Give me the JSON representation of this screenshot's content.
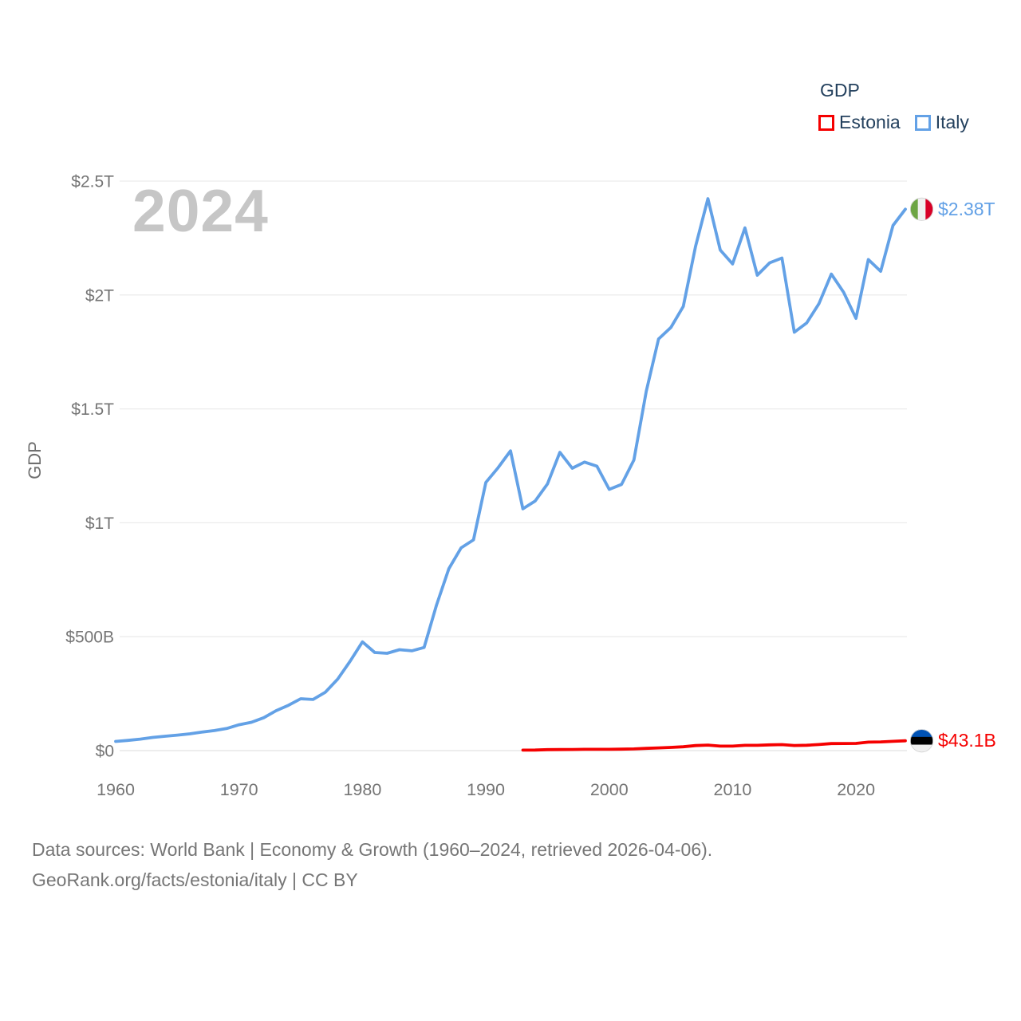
{
  "legend": {
    "title": "GDP",
    "items": [
      {
        "id": "estonia",
        "label": "Estonia",
        "color": "#f50000"
      },
      {
        "id": "italy",
        "label": "Italy",
        "color": "#63a1e6"
      }
    ]
  },
  "chart_data": {
    "type": "line",
    "title": "GDP",
    "ylabel": "GDP",
    "watermark": "2024",
    "unit": "billion USD",
    "xlim": [
      1960,
      2024
    ],
    "ylim_billions": [
      0,
      2500
    ],
    "grid": "horizontal",
    "legend_position": "top-right",
    "x_ticks": [
      1960,
      1970,
      1980,
      1990,
      2000,
      2010,
      2020
    ],
    "y_ticks": [
      {
        "label": "$0",
        "value": 0
      },
      {
        "label": "$500B",
        "value": 500
      },
      {
        "label": "$1T",
        "value": 1000
      },
      {
        "label": "$1.5T",
        "value": 1500
      },
      {
        "label": "$2T",
        "value": 2000
      },
      {
        "label": "$2.5T",
        "value": 2500
      }
    ],
    "series": [
      {
        "name": "Italy",
        "color": "#63a1e6",
        "flag": "italy",
        "end_label": "$2.38T",
        "years": [
          1960,
          1961,
          1962,
          1963,
          1964,
          1965,
          1966,
          1967,
          1968,
          1969,
          1970,
          1971,
          1972,
          1973,
          1974,
          1975,
          1976,
          1977,
          1978,
          1979,
          1980,
          1981,
          1982,
          1983,
          1984,
          1985,
          1986,
          1987,
          1988,
          1989,
          1990,
          1991,
          1992,
          1993,
          1994,
          1995,
          1996,
          1997,
          1998,
          1999,
          2000,
          2001,
          2002,
          2003,
          2004,
          2005,
          2006,
          2007,
          2008,
          2009,
          2010,
          2011,
          2012,
          2013,
          2014,
          2015,
          2016,
          2017,
          2018,
          2019,
          2020,
          2021,
          2022,
          2023,
          2024
        ],
        "values_billion_usd": [
          40.4,
          44.8,
          50.4,
          57.6,
          63.2,
          67.8,
          73.6,
          81.1,
          87.9,
          97.1,
          113.4,
          124.2,
          144.4,
          174.9,
          198.9,
          227.5,
          224.6,
          256.5,
          314.2,
          392.3,
          477.3,
          430.7,
          427.3,
          443.0,
          437.9,
          452.7,
          638.4,
          798.4,
          889.9,
          925.0,
          1177.3,
          1242.1,
          1315.8,
          1061.4,
          1095.7,
          1170.8,
          1309.1,
          1239.5,
          1266.3,
          1248.6,
          1146.7,
          1168.3,
          1275.5,
          1577.2,
          1806.6,
          1857.5,
          1949.6,
          2213.1,
          2422.7,
          2197.1,
          2136.1,
          2294.6,
          2086.9,
          2141.2,
          2162.0,
          1836.6,
          1877.1,
          1961.8,
          2091.9,
          2011.3,
          1897.5,
          2155.4,
          2104.0,
          2305.0,
          2376.5
        ]
      },
      {
        "name": "Estonia",
        "color": "#f50000",
        "flag": "estonia",
        "end_label": "$43.1B",
        "years": [
          1993,
          1994,
          1995,
          1996,
          1997,
          1998,
          1999,
          2000,
          2001,
          2002,
          2003,
          2004,
          2005,
          2006,
          2007,
          2008,
          2009,
          2010,
          2011,
          2012,
          2013,
          2014,
          2015,
          2016,
          2017,
          2018,
          2019,
          2020,
          2021,
          2022,
          2023,
          2024
        ],
        "values_billion_usd": [
          1.97,
          2.43,
          4.37,
          4.72,
          5.0,
          5.59,
          5.72,
          5.69,
          6.26,
          7.35,
          9.86,
          12.03,
          14.01,
          16.97,
          22.22,
          24.18,
          19.65,
          19.49,
          23.17,
          23.04,
          25.14,
          26.22,
          22.57,
          23.34,
          26.61,
          30.73,
          31.08,
          31.37,
          37.19,
          38.1,
          40.75,
          43.1
        ]
      }
    ]
  },
  "flags": {
    "italy": {
      "orientation": "vertical",
      "colors": [
        "#6da544",
        "#f0f0f0",
        "#d80027"
      ]
    },
    "estonia": {
      "orientation": "horizontal",
      "colors": [
        "#0052b4",
        "#000000",
        "#f0f0f0"
      ]
    }
  },
  "colors": {
    "gridline": "#ececec",
    "zero_line": "#e2e2e2",
    "tick_text": "#757575",
    "legend_text": "#24415e",
    "watermark": "#c6c6c6",
    "source_text": "#767676"
  },
  "source": {
    "line1": "Data sources: World Bank | Economy & Growth (1960–2024, retrieved 2026-04-06).",
    "line2": "GeoRank.org/facts/estonia/italy | CC BY"
  }
}
